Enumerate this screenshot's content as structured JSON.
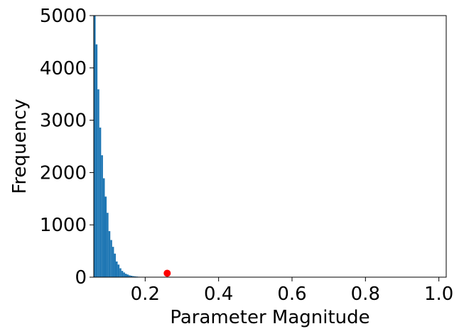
{
  "chart_data": {
    "type": "bar",
    "title": "",
    "xlabel": "Parameter Magnitude",
    "ylabel": "Frequency",
    "xlim": [
      0.06,
      1.02
    ],
    "ylim": [
      0,
      5000
    ],
    "xticks": [
      "0.2",
      "0.4",
      "0.6",
      "0.8",
      "1.0"
    ],
    "yticks": [
      "0",
      "1000",
      "2000",
      "3000",
      "4000",
      "5000"
    ],
    "grid": false,
    "legend": "none",
    "bar_color": "#1f77b4",
    "marker_color": "#ff0000",
    "bin_width": 0.005,
    "bins": [
      {
        "x": 0.0625,
        "y": 5000
      },
      {
        "x": 0.0675,
        "y": 4450
      },
      {
        "x": 0.0725,
        "y": 3590
      },
      {
        "x": 0.0775,
        "y": 2860
      },
      {
        "x": 0.0825,
        "y": 2330
      },
      {
        "x": 0.0875,
        "y": 1890
      },
      {
        "x": 0.0925,
        "y": 1540
      },
      {
        "x": 0.0975,
        "y": 1230
      },
      {
        "x": 0.1025,
        "y": 880
      },
      {
        "x": 0.1075,
        "y": 710
      },
      {
        "x": 0.1125,
        "y": 580
      },
      {
        "x": 0.1175,
        "y": 450
      },
      {
        "x": 0.1225,
        "y": 300
      },
      {
        "x": 0.1275,
        "y": 240
      },
      {
        "x": 0.1325,
        "y": 170
      },
      {
        "x": 0.1375,
        "y": 120
      },
      {
        "x": 0.1425,
        "y": 90
      },
      {
        "x": 0.1475,
        "y": 65
      },
      {
        "x": 0.1525,
        "y": 50
      },
      {
        "x": 0.1575,
        "y": 35
      },
      {
        "x": 0.1625,
        "y": 27
      },
      {
        "x": 0.1675,
        "y": 20
      },
      {
        "x": 0.1725,
        "y": 15
      },
      {
        "x": 0.1775,
        "y": 11
      },
      {
        "x": 0.1825,
        "y": 8
      },
      {
        "x": 0.1875,
        "y": 6
      },
      {
        "x": 0.1925,
        "y": 5
      },
      {
        "x": 0.1975,
        "y": 4
      },
      {
        "x": 0.2025,
        "y": 3
      },
      {
        "x": 0.2075,
        "y": 2
      }
    ],
    "highlight_point": {
      "x": 0.26,
      "y": 75
    }
  }
}
